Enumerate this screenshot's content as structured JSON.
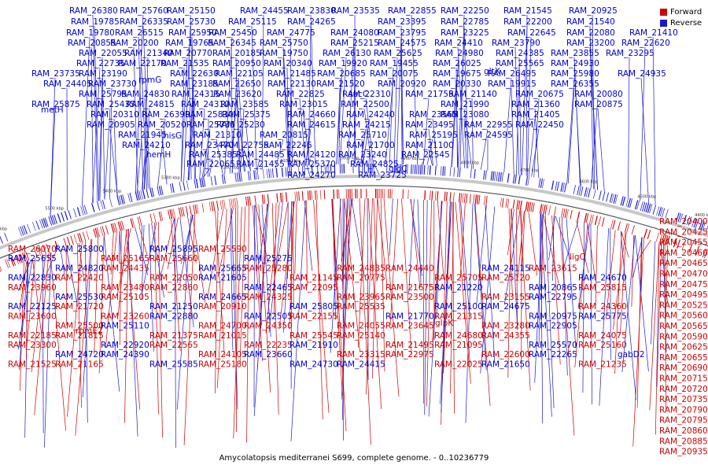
{
  "legend": {
    "forward_label": "Forward",
    "reverse_label": "Reverse",
    "forward_color": "#cc0000",
    "reverse_color": "#1a1acc"
  },
  "caption": "Amycolatopsis mediterranei S699, complete genome. - 0..10236779",
  "ticks": [
    "5700 kbp",
    "5600 kbp",
    "5500 kbp",
    "5400 kbp",
    "5300 kbp",
    "5200 kbp",
    "5100 kbp",
    "5000 kbp",
    "4900 kbp",
    "4800 kbp",
    "4700 kbp",
    "4600 kbp",
    "4500 kbp",
    "4400 kbp",
    "4300 kbp",
    "4200 kbp"
  ],
  "reverse_labels_top": [
    "RAM_26380",
    "RAM_25760",
    "RAM_25150",
    "RAM_24455",
    "RAM_23830",
    "RAM_23535",
    "RAM_22855",
    "RAM_22250",
    "RAM_21545",
    "RAM_20925",
    "RAM_20225",
    "RAM_19785",
    "RAM_26335",
    "RAM_25730",
    "RAM_25115",
    "RAM_24265",
    "RAM_23395",
    "RAM_22785",
    "RAM_22200",
    "RAM_21540",
    "RAM_20915",
    "RAM_20220",
    "RAM_19780",
    "RAM_26515",
    "RAM_25950",
    "RAM_25450",
    "RAM_24775",
    "RAM_24080",
    "RAM_23795",
    "RAM_23225",
    "RAM_22645",
    "RAM_22080",
    "RAM_21410",
    "RAM_20855",
    "RAM_20200",
    "RAM_19765",
    "RAM_26345",
    "RAM_25750",
    "RAM_25215",
    "RAM_24575",
    "RAM_24410",
    "RAM_23790",
    "RAM_23200",
    "RAM_22620",
    "RAM_22055",
    "RAM_21340",
    "RAM_20770",
    "RAM_20185",
    "RAM_19750",
    "RAM_26130",
    "RAM_25625",
    "RAM_24980",
    "RAM_24385",
    "RAM_23855",
    "RAM_23295",
    "RAM_22735",
    "RAM_22170",
    "RAM_21535",
    "RAM_20950",
    "RAM_20340",
    "RAM_19920",
    "RAM_19455",
    "RAM_26025",
    "RAM_25565",
    "RAM_24930",
    "RAM_23735",
    "RAM_23190",
    "RAM_22630",
    "RAM_22105",
    "RAM_21485",
    "RAM_20685",
    "RAM_20075",
    "RAM_19675",
    "RAM_26495",
    "RAM_25980",
    "RAM_24935",
    "RAM_24405",
    "RAM_23730",
    "RAM_23185",
    "RAM_22650",
    "RAM_22130",
    "RAM_21520",
    "RAM_20920",
    "RAM_20330",
    "RAM_19915",
    "RAM_26355",
    "RAM_25795",
    "RAM_24830",
    "RAM_24315",
    "RAM_23620",
    "RAM_22825",
    "RAM_22310",
    "RAM_21755",
    "RAM_21140",
    "RAM_20675",
    "RAM_20080",
    "RAM_25875",
    "RAM_25435",
    "RAM_24815",
    "RAM_24310",
    "RAM_23585",
    "RAM_23015",
    "RAM_22500",
    "RAM_21990",
    "RAM_21360",
    "RAM_20875",
    "RAM_20310",
    "RAM_26390",
    "RAM_25830",
    "RAM_25375",
    "RAM_24660",
    "RAM_24240",
    "RAM_23565",
    "RAM_23080",
    "RAM_21405",
    "RAM_20905",
    "RAM_20520",
    "RAM_25735",
    "RAM_25230",
    "RAM_24615",
    "RAM_24215",
    "RAM_23495",
    "RAM_22955",
    "RAM_22450",
    "RAM_21945",
    "RAM_21310",
    "RAM_20815",
    "RAM_25710",
    "RAM_25195",
    "RAM_24595",
    "RAM_24210",
    "RAM_23470",
    "RAM_22755",
    "RAM_22245",
    "RAM_21700",
    "RAM_21100",
    "RAM_25385",
    "RAM_24485",
    "RAM_24120",
    "RAM_23240",
    "RAM_22545",
    "RAM_22065",
    "RAM_21455",
    "RAM_25370",
    "RAM_24825",
    "RAM_24270",
    "RAM_23725",
    "RAM_23060",
    "RAM_22490",
    "RAM_21900",
    "RAM_24685",
    "RAM_24150",
    "RAM_23530",
    "RAM_22980",
    "RAM_22285",
    "RAM_24515",
    "RAM_24070",
    "RAM_23475",
    "RAM_23055",
    "RAM_23485"
  ],
  "gene_names_top": [
    "rpmG",
    "gltX",
    "sucC",
    "metH",
    "hisG",
    "hemH",
    "glgC"
  ],
  "forward_labels_right": [
    "RAM_20400",
    "RAM_20425",
    "RAM_20455",
    "RAM_20460",
    "RAM_20465",
    "RAM_20470",
    "RAM_20475",
    "RAM_20495",
    "RAM_20525",
    "RAM_20560",
    "RAM_20565",
    "RAM_20590",
    "RAM_20625",
    "RAM_20655",
    "RAM_20690",
    "RAM_20715",
    "RAM_20720",
    "RAM_20735",
    "RAM_20790",
    "RAM_20795",
    "RAM_20860",
    "RAM_20885",
    "RAM_20935"
  ],
  "bottom_labels": [
    {
      "t": "RAM_26070",
      "s": "f"
    },
    {
      "t": "RAM_25800",
      "s": "r"
    },
    {
      "t": "RAM_25895",
      "s": "r"
    },
    {
      "t": "RAM_25590",
      "s": "f"
    },
    {
      "t": "RAM_25655",
      "s": "r"
    },
    {
      "t": "RAM_25165",
      "s": "f"
    },
    {
      "t": "RAM_25660",
      "s": "f"
    },
    {
      "t": "RAM_25275",
      "s": "r"
    },
    {
      "t": "RAM_24820",
      "s": "r"
    },
    {
      "t": "RAM_24435",
      "s": "f"
    },
    {
      "t": "RAM_25665",
      "s": "r"
    },
    {
      "t": "RAM_25280",
      "s": "f"
    },
    {
      "t": "RAM_24835",
      "s": "f"
    },
    {
      "t": "RAM_24440",
      "s": "f"
    },
    {
      "t": "RAM_24115",
      "s": "r"
    },
    {
      "t": "RAM_23615",
      "s": "f"
    },
    {
      "t": "RAM_23245",
      "s": "f"
    },
    {
      "t": "RAM_22830",
      "s": "r"
    },
    {
      "t": "RAM_22420",
      "s": "f"
    },
    {
      "t": "RAM_22050",
      "s": "f"
    },
    {
      "t": "RAM_21605",
      "s": "r"
    },
    {
      "t": "RAM_21145",
      "s": "f"
    },
    {
      "t": "RAM_20775",
      "s": "f"
    },
    {
      "t": "RAM_25705",
      "s": "f"
    },
    {
      "t": "RAM_25120",
      "s": "f"
    },
    {
      "t": "RAM_24670",
      "s": "r"
    },
    {
      "t": "RAM_24320",
      "s": "f"
    },
    {
      "t": "RAM_23960",
      "s": "f"
    },
    {
      "t": "RAM_23480",
      "s": "f"
    },
    {
      "t": "RAM_22860",
      "s": "f"
    },
    {
      "t": "RAM_22465",
      "s": "r"
    },
    {
      "t": "RAM_22095",
      "s": "f"
    },
    {
      "t": "RAM_21675",
      "s": "f"
    },
    {
      "t": "RAM_21220",
      "s": "r"
    },
    {
      "t": "RAM_20865",
      "s": "r"
    },
    {
      "t": "RAM_25815",
      "s": "f"
    },
    {
      "t": "RAM_25530",
      "s": "r"
    },
    {
      "t": "RAM_25105",
      "s": "f"
    },
    {
      "t": "RAM_24665",
      "s": "r"
    },
    {
      "t": "RAM_24325",
      "s": "f"
    },
    {
      "t": "RAM_23965",
      "s": "f"
    },
    {
      "t": "RAM_23500",
      "s": "f"
    },
    {
      "t": "RAM_23155",
      "s": "f"
    },
    {
      "t": "RAM_22795",
      "s": "r"
    },
    {
      "t": "RAM_22425",
      "s": "f"
    },
    {
      "t": "RAM_22125",
      "s": "r"
    },
    {
      "t": "RAM_21720",
      "s": "f"
    },
    {
      "t": "RAM_21250",
      "s": "r"
    },
    {
      "t": "RAM_20910",
      "s": "f"
    },
    {
      "t": "RAM_25805",
      "s": "r"
    },
    {
      "t": "RAM_25535",
      "s": "f"
    },
    {
      "t": "RAM_25100",
      "s": "r"
    },
    {
      "t": "RAM_24675",
      "s": "r"
    },
    {
      "t": "RAM_24360",
      "s": "f"
    },
    {
      "t": "RAM_24065",
      "s": "f"
    },
    {
      "t": "RAM_23600",
      "s": "f"
    },
    {
      "t": "RAM_23260",
      "s": "f"
    },
    {
      "t": "RAM_22880",
      "s": "r"
    },
    {
      "t": "RAM_22505",
      "s": "r"
    },
    {
      "t": "RAM_22155",
      "s": "f"
    },
    {
      "t": "RAM_21770",
      "s": "r"
    },
    {
      "t": "RAM_21315",
      "s": "f"
    },
    {
      "t": "RAM_20975",
      "s": "r"
    },
    {
      "t": "RAM_25775",
      "s": "r"
    },
    {
      "t": "RAM_25500",
      "s": "f"
    },
    {
      "t": "RAM_25110",
      "s": "r"
    },
    {
      "t": "RAM_24700",
      "s": "f"
    },
    {
      "t": "RAM_24350",
      "s": "f"
    },
    {
      "t": "RAM_24055",
      "s": "f"
    },
    {
      "t": "RAM_23645",
      "s": "f"
    },
    {
      "t": "RAM_23280",
      "s": "f"
    },
    {
      "t": "RAM_22905",
      "s": "r"
    },
    {
      "t": "RAM_22535",
      "s": "f"
    },
    {
      "t": "RAM_22185",
      "s": "f"
    },
    {
      "t": "RAM_21815",
      "s": "f"
    },
    {
      "t": "RAM_21375",
      "s": "f"
    },
    {
      "t": "RAM_21015",
      "s": "f"
    },
    {
      "t": "RAM_25545",
      "s": "f"
    },
    {
      "t": "RAM_25140",
      "s": "f"
    },
    {
      "t": "RAM_24680",
      "s": "f"
    },
    {
      "t": "RAM_24355",
      "s": "f"
    },
    {
      "t": "RAM_24075",
      "s": "f"
    },
    {
      "t": "RAM_23610",
      "s": "f"
    },
    {
      "t": "RAM_23300",
      "s": "f"
    },
    {
      "t": "RAM_22920",
      "s": "r"
    },
    {
      "t": "RAM_22565",
      "s": "f"
    },
    {
      "t": "RAM_22235",
      "s": "f"
    },
    {
      "t": "RAM_21910",
      "s": "r"
    },
    {
      "t": "RAM_21495",
      "s": "f"
    },
    {
      "t": "RAM_21095",
      "s": "f"
    },
    {
      "t": "RAM_25570",
      "s": "r"
    },
    {
      "t": "RAM_25160",
      "s": "f"
    },
    {
      "t": "RAM_24720",
      "s": "r"
    },
    {
      "t": "RAM_24390",
      "s": "r"
    },
    {
      "t": "RAM_24105",
      "s": "f"
    },
    {
      "t": "RAM_23660",
      "s": "r"
    },
    {
      "t": "RAM_23315",
      "s": "f"
    },
    {
      "t": "RAM_22975",
      "s": "f"
    },
    {
      "t": "RAM_22600",
      "s": "f"
    },
    {
      "t": "RAM_22265",
      "s": "r"
    },
    {
      "t": "RAM_21930",
      "s": "r"
    },
    {
      "t": "RAM_21525",
      "s": "f"
    },
    {
      "t": "RAM_21165",
      "s": "f"
    },
    {
      "t": "RAM_25585",
      "s": "r"
    },
    {
      "t": "RAM_25180",
      "s": "f"
    },
    {
      "t": "RAM_24730",
      "s": "r"
    },
    {
      "t": "RAM_24415",
      "s": "r"
    },
    {
      "t": "RAM_22025",
      "s": "f"
    },
    {
      "t": "RAM_21650",
      "s": "r"
    },
    {
      "t": "RAM_21235",
      "s": "f"
    },
    {
      "t": "RAM_20935",
      "s": "f"
    }
  ],
  "gene_names_bottom": [
    {
      "t": "rpmE2",
      "s": "f"
    },
    {
      "t": "glpK",
      "s": "f"
    },
    {
      "t": "ligC",
      "s": "f"
    },
    {
      "t": "gabD2",
      "s": "r"
    }
  ]
}
